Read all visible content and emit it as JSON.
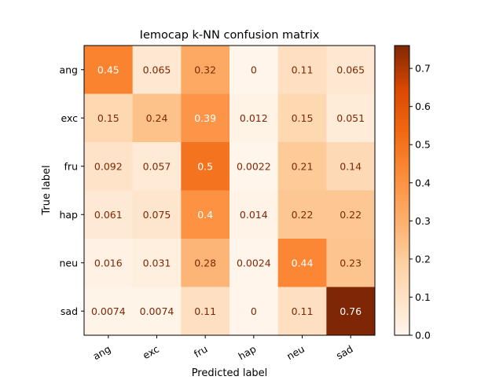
{
  "chart_data": {
    "type": "heatmap",
    "title": "Iemocap k-NN confusion matrix",
    "xlabel": "Predicted label",
    "ylabel": "True label",
    "x_categories": [
      "ang",
      "exc",
      "fru",
      "hap",
      "neu",
      "sad"
    ],
    "y_categories": [
      "ang",
      "exc",
      "fru",
      "hap",
      "neu",
      "sad"
    ],
    "cell_labels": [
      [
        "0.45",
        "0.065",
        "0.32",
        "0",
        "0.11",
        "0.065"
      ],
      [
        "0.15",
        "0.24",
        "0.39",
        "0.012",
        "0.15",
        "0.051"
      ],
      [
        "0.092",
        "0.057",
        "0.5",
        "0.0022",
        "0.21",
        "0.14"
      ],
      [
        "0.061",
        "0.075",
        "0.4",
        "0.014",
        "0.22",
        "0.22"
      ],
      [
        "0.016",
        "0.031",
        "0.28",
        "0.0024",
        "0.44",
        "0.23"
      ],
      [
        "0.0074",
        "0.0074",
        "0.11",
        "0",
        "0.11",
        "0.76"
      ]
    ],
    "colormap": "Oranges",
    "colorbar": {
      "range": [
        0,
        0.76
      ],
      "ticks": [
        "0.0",
        "0.1",
        "0.2",
        "0.3",
        "0.4",
        "0.5",
        "0.6",
        "0.7"
      ]
    },
    "grid": false
  }
}
